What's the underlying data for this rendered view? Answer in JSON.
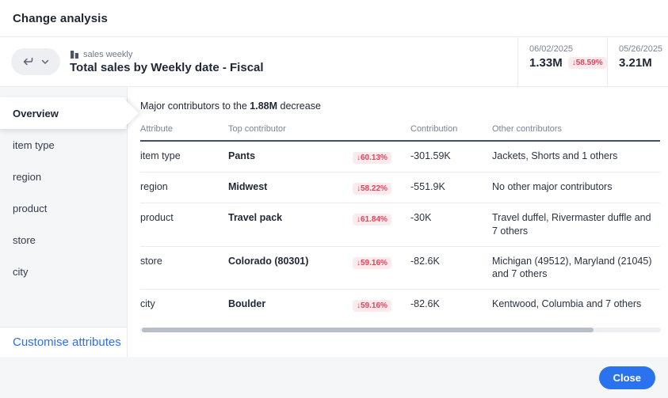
{
  "dialog": {
    "title": "Change analysis"
  },
  "header": {
    "source_icon": "bar-chart-icon",
    "source_label": "sales weekly",
    "viz_title": "Total sales by Weekly date - Fiscal",
    "metrics": [
      {
        "date": "06/02/2025",
        "value": "1.33M",
        "change": "↓58.59%"
      },
      {
        "date": "05/26/2025",
        "value": "3.21M",
        "change": ""
      }
    ]
  },
  "sidebar": {
    "items": [
      {
        "label": "Overview",
        "selected": true
      },
      {
        "label": "item type",
        "selected": false
      },
      {
        "label": "region",
        "selected": false
      },
      {
        "label": "product",
        "selected": false
      },
      {
        "label": "store",
        "selected": false
      },
      {
        "label": "city",
        "selected": false
      }
    ],
    "footer_link": "Customise attributes"
  },
  "main": {
    "summary_prefix": "Major contributors to the ",
    "summary_value": "1.88M",
    "summary_suffix": " decrease",
    "table": {
      "columns": [
        "Attribute",
        "Top contributor",
        "",
        "Contribution",
        "Other contributors"
      ],
      "rows": [
        {
          "attribute": "item type",
          "top_contributor": "Pants",
          "change": "↓60.13%",
          "contribution": "-301.59K",
          "others": "Jackets, Shorts and 1 others"
        },
        {
          "attribute": "region",
          "top_contributor": "Midwest",
          "change": "↓58.22%",
          "contribution": "-551.9K",
          "others": "No other major contributors"
        },
        {
          "attribute": "product",
          "top_contributor": "Travel pack",
          "change": "↓61.84%",
          "contribution": "-30K",
          "others": "Travel duffel, Rivermaster duffle and 7 others"
        },
        {
          "attribute": "store",
          "top_contributor": "Colorado (80301)",
          "change": "↓59.16%",
          "contribution": "-82.6K",
          "others": "Michigan (49512), Maryland (21045) and 7 others"
        },
        {
          "attribute": "city",
          "top_contributor": "Boulder",
          "change": "↓59.16%",
          "contribution": "-82.6K",
          "others": "Kentwood, Columbia and 7 others"
        }
      ]
    }
  },
  "footer": {
    "close_label": "Close"
  },
  "colors": {
    "accent_blue": "#2B72EF",
    "link_blue": "#2C6EF2",
    "negative_red": "#E8415A",
    "negative_bg": "#FDEAED",
    "sidebar_bg": "#F5F6F8",
    "divider": "#E9EBEE",
    "dark_text": "#1F2734",
    "muted_text": "#7B8494"
  }
}
